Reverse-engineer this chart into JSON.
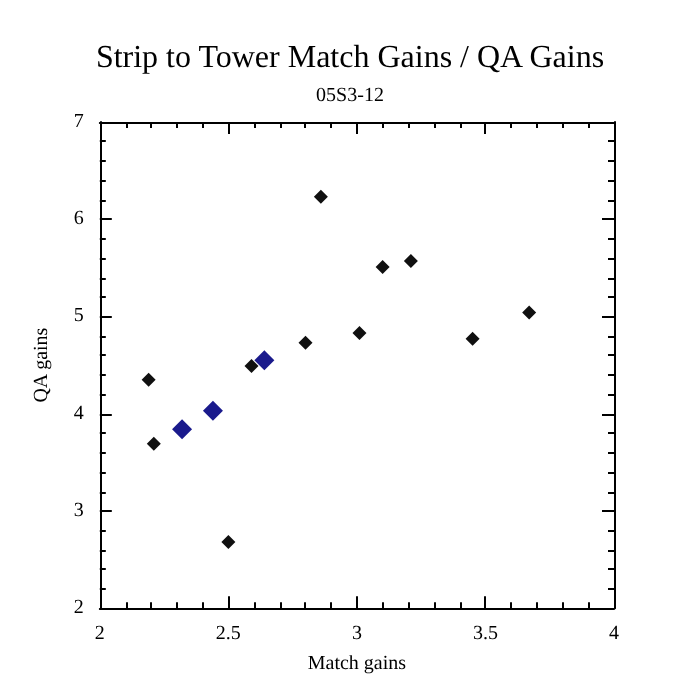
{
  "chart_data": {
    "type": "scatter",
    "title": "Strip to Tower Match Gains / QA Gains",
    "subtitle": "05S3-12",
    "xlabel": "Match gains",
    "ylabel": "QA gains",
    "xlim": [
      2,
      4
    ],
    "xticks": [
      2,
      2.5,
      3,
      3.5,
      4
    ],
    "ylim": [
      2,
      7
    ],
    "yticks": [
      2,
      3,
      4,
      5,
      6,
      7
    ],
    "grid": false,
    "marker": "diamond",
    "series": [
      {
        "color": "#101010",
        "x": [
          2.19,
          2.21,
          2.5,
          2.59,
          2.8,
          3.01,
          2.86,
          3.1,
          3.21,
          3.45,
          3.67
        ],
        "values": [
          4.35,
          3.69,
          2.68,
          4.49,
          4.73,
          4.83,
          6.23,
          5.51,
          5.57,
          4.77,
          5.04
        ]
      },
      {
        "color": "#1a1a8c",
        "x": [
          2.32,
          2.44,
          2.64
        ],
        "values": [
          3.84,
          4.03,
          4.55
        ]
      }
    ]
  }
}
